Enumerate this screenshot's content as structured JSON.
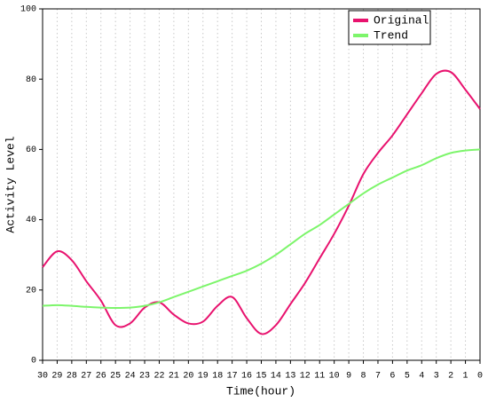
{
  "chart_data": {
    "type": "line",
    "x_label": "Time(hour)",
    "y_label": "Activity Level",
    "x": [
      30,
      29,
      28,
      27,
      26,
      25,
      24,
      23,
      22,
      21,
      20,
      19,
      18,
      17,
      16,
      15,
      14,
      13,
      12,
      11,
      10,
      9,
      8,
      7,
      6,
      5,
      4,
      3,
      2,
      1,
      0
    ],
    "series": [
      {
        "name": "Original",
        "color": "#e8126e",
        "values": [
          26.5,
          31,
          28.5,
          22.5,
          17,
          10,
          10.5,
          15,
          16.5,
          13,
          10.5,
          11,
          15.5,
          18,
          12,
          7.5,
          10,
          16,
          22,
          29,
          36,
          44,
          53,
          59,
          64,
          70,
          76,
          81.5,
          82,
          77,
          71.5
        ]
      },
      {
        "name": "Trend",
        "color": "#7df56b",
        "values": [
          15.5,
          15.7,
          15.5,
          15.2,
          15,
          14.9,
          15,
          15.5,
          16.5,
          18,
          19.5,
          21,
          22.5,
          24,
          25.5,
          27.5,
          30,
          33,
          36,
          38.5,
          41.5,
          44.5,
          47.5,
          50,
          52,
          54,
          55.5,
          57.5,
          59,
          59.7,
          60
        ]
      }
    ],
    "xlim": [
      30,
      0
    ],
    "xticks": [
      30,
      29,
      28,
      27,
      26,
      25,
      24,
      23,
      22,
      21,
      20,
      19,
      18,
      17,
      16,
      15,
      14,
      13,
      12,
      11,
      10,
      9,
      8,
      7,
      6,
      5,
      4,
      3,
      2,
      1,
      0
    ],
    "ylim": [
      0,
      100
    ],
    "yticks": [
      0,
      20,
      40,
      60,
      80,
      100
    ],
    "grid": "x",
    "legend": "upper-right"
  }
}
